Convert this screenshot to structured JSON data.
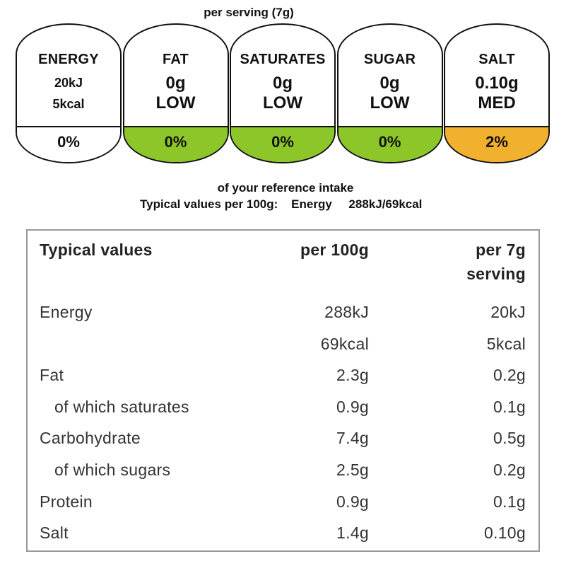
{
  "serving_title": "per serving  (7g)",
  "gda": [
    {
      "name": "ENERGY",
      "line1": "20kJ",
      "line2": "5kcal",
      "percent": "0%",
      "color": "#ffffff"
    },
    {
      "name": "FAT",
      "amount": "0g",
      "level": "LOW",
      "percent": "0%",
      "color": "#8cc629"
    },
    {
      "name": "SATURATES",
      "amount": "0g",
      "level": "LOW",
      "percent": "0%",
      "color": "#8cc629"
    },
    {
      "name": "SUGAR",
      "amount": "0g",
      "level": "LOW",
      "percent": "0%",
      "color": "#8cc629"
    },
    {
      "name": "SALT",
      "amount": "0.10g",
      "level": "MED",
      "percent": "2%",
      "color": "#f2b02f"
    }
  ],
  "ri_note": "of your reference intake",
  "typical_line": "Typical values per 100g:    Energy     288kJ/69kcal",
  "table": {
    "header": {
      "c1": "Typical values",
      "c2": "per 100g",
      "c3a": "per 7g",
      "c3b": "serving"
    },
    "rows": [
      {
        "c1": "Energy",
        "c2": "288kJ",
        "c3": "20kJ"
      },
      {
        "c1": "",
        "c2": "69kcal",
        "c3": "5kcal"
      },
      {
        "c1": "Fat",
        "c2": "2.3g",
        "c3": "0.2g"
      },
      {
        "c1": "of which saturates",
        "c2": "0.9g",
        "c3": "0.1g"
      },
      {
        "c1": "Carbohydrate",
        "c2": "7.4g",
        "c3": "0.5g"
      },
      {
        "c1": "of which sugars",
        "c2": "2.5g",
        "c3": "0.2g"
      },
      {
        "c1": "Protein",
        "c2": "0.9g",
        "c3": "0.1g"
      },
      {
        "c1": "Salt",
        "c2": "1.4g",
        "c3": "0.10g"
      }
    ]
  }
}
